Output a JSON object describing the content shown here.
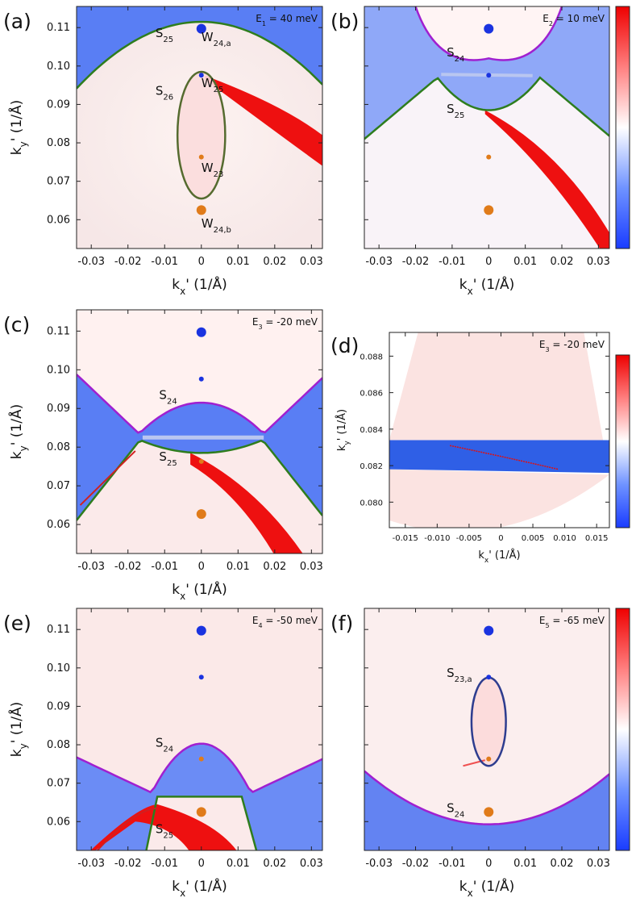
{
  "chart_data": [
    {
      "type": "heatmap",
      "panel_label": "(a)",
      "energy_label": "E",
      "energy_sub": "1",
      "energy_value": " = 40 meV",
      "xlabel": "k",
      "xlabel_sub": "x",
      "xlabel_unit": "' (1/Å)",
      "ylabel": "k",
      "ylabel_sub": "y",
      "ylabel_unit": "' (1/Å)",
      "xlim": [
        -0.034,
        0.033
      ],
      "ylim": [
        0.0525,
        0.1155
      ],
      "xticks": [
        "-0.03",
        "-0.02",
        "-0.01",
        "0",
        "0.01",
        "0.02",
        "0.03"
      ],
      "yticks": [
        "0.06",
        "0.07",
        "0.08",
        "0.09",
        "0.10",
        "0.11"
      ],
      "colorbar": false,
      "curves": [
        {
          "name": "S25 (green)",
          "color": "#2e7d1e",
          "kind": "parabola",
          "apex": [
            0,
            0.1115
          ],
          "curvature": 15
        },
        {
          "name": "S26 (olive ellipse)",
          "color": "#556b2f",
          "kind": "ellipse",
          "center": [
            0,
            0.082
          ],
          "radii": [
            0.0065,
            0.0165
          ]
        }
      ],
      "points": [
        {
          "name": "W24,a",
          "x": 0,
          "y": 0.1097,
          "color": "#1a33e0",
          "size": "large"
        },
        {
          "name": "W25",
          "x": 0,
          "y": 0.0976,
          "color": "#1a33e0",
          "size": "small"
        },
        {
          "name": "W23",
          "x": 0,
          "y": 0.0763,
          "color": "#e07b1a",
          "size": "small"
        },
        {
          "name": "W24,b",
          "x": 0,
          "y": 0.0625,
          "color": "#e07b1a",
          "size": "large"
        }
      ],
      "annotations": [
        {
          "text": "S",
          "sub": "25",
          "x": -0.0125,
          "y": 0.1075
        },
        {
          "text": "W",
          "sub": "24,a",
          "x": 0.0,
          "y": 0.1065
        },
        {
          "text": "S",
          "sub": "26",
          "x": -0.0125,
          "y": 0.0925
        },
        {
          "text": "W",
          "sub": "25",
          "x": 0.0,
          "y": 0.0945
        },
        {
          "text": "W",
          "sub": "23",
          "x": 0.0,
          "y": 0.0725
        },
        {
          "text": "W",
          "sub": "24,b",
          "x": 0.0,
          "y": 0.058
        }
      ]
    },
    {
      "type": "heatmap",
      "panel_label": "(b)",
      "energy_label": "E",
      "energy_sub": "2",
      "energy_value": " = 10 meV",
      "xlabel": "k",
      "xlabel_sub": "x",
      "xlabel_unit": "' (1/Å)",
      "ylabel": "",
      "ylabel_sub": "",
      "ylabel_unit": "",
      "xlim": [
        -0.034,
        0.033
      ],
      "ylim": [
        0.0525,
        0.1155
      ],
      "xticks": [
        "-0.03",
        "-0.02",
        "-0.01",
        "0",
        "0.01",
        "0.02",
        "0.03"
      ],
      "yticks": [],
      "colorbar": true,
      "curves": [
        {
          "name": "S24 (purple)",
          "color": "#a020d0",
          "kind": "bowl",
          "bottom": [
            0,
            0.102
          ]
        },
        {
          "name": "S25 (green)",
          "color": "#2e7d1e",
          "kind": "cap",
          "top": [
            0,
            0.0885
          ]
        }
      ],
      "points": [
        {
          "name": "blue large",
          "x": 0,
          "y": 0.1097,
          "color": "#1a33e0",
          "size": "large"
        },
        {
          "name": "blue small",
          "x": 0,
          "y": 0.0976,
          "color": "#1a33e0",
          "size": "small"
        },
        {
          "name": "orange small",
          "x": 0,
          "y": 0.0763,
          "color": "#e07b1a",
          "size": "small"
        },
        {
          "name": "orange large",
          "x": 0,
          "y": 0.0625,
          "color": "#e07b1a",
          "size": "large"
        }
      ],
      "annotations": [
        {
          "text": "S",
          "sub": "24",
          "x": -0.0115,
          "y": 0.1025
        },
        {
          "text": "S",
          "sub": "25",
          "x": -0.0115,
          "y": 0.0878
        }
      ]
    },
    {
      "type": "heatmap",
      "panel_label": "(c)",
      "energy_label": "E",
      "energy_sub": "3",
      "energy_value": " = -20 meV",
      "xlabel": "k",
      "xlabel_sub": "x",
      "xlabel_unit": "' (1/Å)",
      "ylabel": "k",
      "ylabel_sub": "y",
      "ylabel_unit": "' (1/Å)",
      "xlim": [
        -0.034,
        0.033
      ],
      "ylim": [
        0.0525,
        0.1155
      ],
      "xticks": [
        "-0.03",
        "-0.02",
        "-0.01",
        "0",
        "0.01",
        "0.02",
        "0.03"
      ],
      "yticks": [
        "0.06",
        "0.07",
        "0.08",
        "0.09",
        "0.10",
        "0.11"
      ],
      "colorbar": false,
      "curves": [
        {
          "name": "S24 (purple)",
          "color": "#a020d0",
          "kind": "hump",
          "top": [
            0,
            0.0915
          ]
        },
        {
          "name": "S25 (green)",
          "color": "#2e7d1e",
          "kind": "cap",
          "top": [
            0,
            0.0785
          ]
        }
      ],
      "points": [
        {
          "name": "blue large",
          "x": 0,
          "y": 0.1097,
          "color": "#1a33e0",
          "size": "large"
        },
        {
          "name": "blue small",
          "x": 0,
          "y": 0.0976,
          "color": "#1a33e0",
          "size": "small"
        },
        {
          "name": "orange small",
          "x": 0,
          "y": 0.0763,
          "color": "#e07b1a",
          "size": "small"
        },
        {
          "name": "orange large",
          "x": 0,
          "y": 0.0627,
          "color": "#e07b1a",
          "size": "large"
        }
      ],
      "annotations": [
        {
          "text": "S",
          "sub": "24",
          "x": -0.0115,
          "y": 0.0925
        },
        {
          "text": "S",
          "sub": "25",
          "x": -0.0115,
          "y": 0.0765
        }
      ]
    },
    {
      "type": "heatmap",
      "panel_label": "(d)",
      "energy_label": "E",
      "energy_sub": "3",
      "energy_value": " = -20 meV",
      "xlabel": "k",
      "xlabel_sub": "x",
      "xlabel_unit": "' (1/Å)",
      "ylabel": "k",
      "ylabel_sub": "y",
      "ylabel_unit": "' (1/Å)",
      "xlim": [
        -0.0175,
        0.017
      ],
      "ylim": [
        0.0786,
        0.0893
      ],
      "xticks": [
        "-0.015",
        "-0.010",
        "-0.005",
        "0",
        "0.005",
        "0.010",
        "0.015"
      ],
      "yticks": [
        "0.080",
        "0.082",
        "0.084",
        "0.086",
        "0.088"
      ],
      "colorbar": true,
      "curves": [],
      "points": [],
      "annotations": []
    },
    {
      "type": "heatmap",
      "panel_label": "(e)",
      "energy_label": "E",
      "energy_sub": "4",
      "energy_value": " = -50 meV",
      "xlabel": "k",
      "xlabel_sub": "x",
      "xlabel_unit": "' (1/Å)",
      "ylabel": "k",
      "ylabel_sub": "y",
      "ylabel_unit": "' (1/Å)",
      "xlim": [
        -0.034,
        0.033
      ],
      "ylim": [
        0.0525,
        0.1155
      ],
      "xticks": [
        "-0.03",
        "-0.02",
        "-0.01",
        "0",
        "0.01",
        "0.02",
        "0.03"
      ],
      "yticks": [
        "0.06",
        "0.07",
        "0.08",
        "0.09",
        "0.10",
        "0.11"
      ],
      "colorbar": false,
      "curves": [
        {
          "name": "S24 (purple)",
          "color": "#a020d0",
          "kind": "hump",
          "top": [
            0,
            0.0803
          ]
        },
        {
          "name": "S25 (green)",
          "color": "#2e7d1e",
          "kind": "box",
          "top": [
            0,
            0.0665
          ]
        }
      ],
      "points": [
        {
          "name": "blue large",
          "x": 0,
          "y": 0.1097,
          "color": "#1a33e0",
          "size": "large"
        },
        {
          "name": "blue small",
          "x": 0,
          "y": 0.0976,
          "color": "#1a33e0",
          "size": "small"
        },
        {
          "name": "orange small",
          "x": 0,
          "y": 0.0763,
          "color": "#e07b1a",
          "size": "small"
        },
        {
          "name": "orange large",
          "x": 0,
          "y": 0.0625,
          "color": "#e07b1a",
          "size": "large"
        }
      ],
      "annotations": [
        {
          "text": "S",
          "sub": "24",
          "x": -0.0125,
          "y": 0.0795
        },
        {
          "text": "S",
          "sub": "25",
          "x": -0.0125,
          "y": 0.057
        }
      ]
    },
    {
      "type": "heatmap",
      "panel_label": "(f)",
      "energy_label": "E",
      "energy_sub": "5",
      "energy_value": " = -65 meV",
      "xlabel": "k",
      "xlabel_sub": "x",
      "xlabel_unit": "' (1/Å)",
      "ylabel": "",
      "ylabel_sub": "",
      "ylabel_unit": "",
      "xlim": [
        -0.034,
        0.033
      ],
      "ylim": [
        0.0525,
        0.1155
      ],
      "xticks": [
        "-0.03",
        "-0.02",
        "-0.01",
        "0",
        "0.01",
        "0.02",
        "0.03"
      ],
      "yticks": [],
      "colorbar": true,
      "curves": [
        {
          "name": "S23,a (navy ellipse)",
          "color": "#2e3d8f",
          "kind": "ellipse",
          "center": [
            0,
            0.086
          ],
          "radii": [
            0.0047,
            0.0115
          ]
        },
        {
          "name": "S24 (purple)",
          "color": "#a020d0",
          "kind": "parabola-up",
          "bottom": [
            0,
            0.0593
          ]
        }
      ],
      "points": [
        {
          "name": "blue large",
          "x": 0,
          "y": 0.1097,
          "color": "#1a33e0",
          "size": "large"
        },
        {
          "name": "blue small",
          "x": 0,
          "y": 0.0976,
          "color": "#1a33e0",
          "size": "small"
        },
        {
          "name": "orange small",
          "x": 0,
          "y": 0.0763,
          "color": "#e07b1a",
          "size": "small"
        },
        {
          "name": "orange large",
          "x": 0,
          "y": 0.0625,
          "color": "#e07b1a",
          "size": "large"
        }
      ],
      "annotations": [
        {
          "text": "S",
          "sub": "23,a",
          "x": -0.0115,
          "y": 0.0977
        },
        {
          "text": "S",
          "sub": "24",
          "x": -0.0115,
          "y": 0.0625
        }
      ]
    }
  ]
}
